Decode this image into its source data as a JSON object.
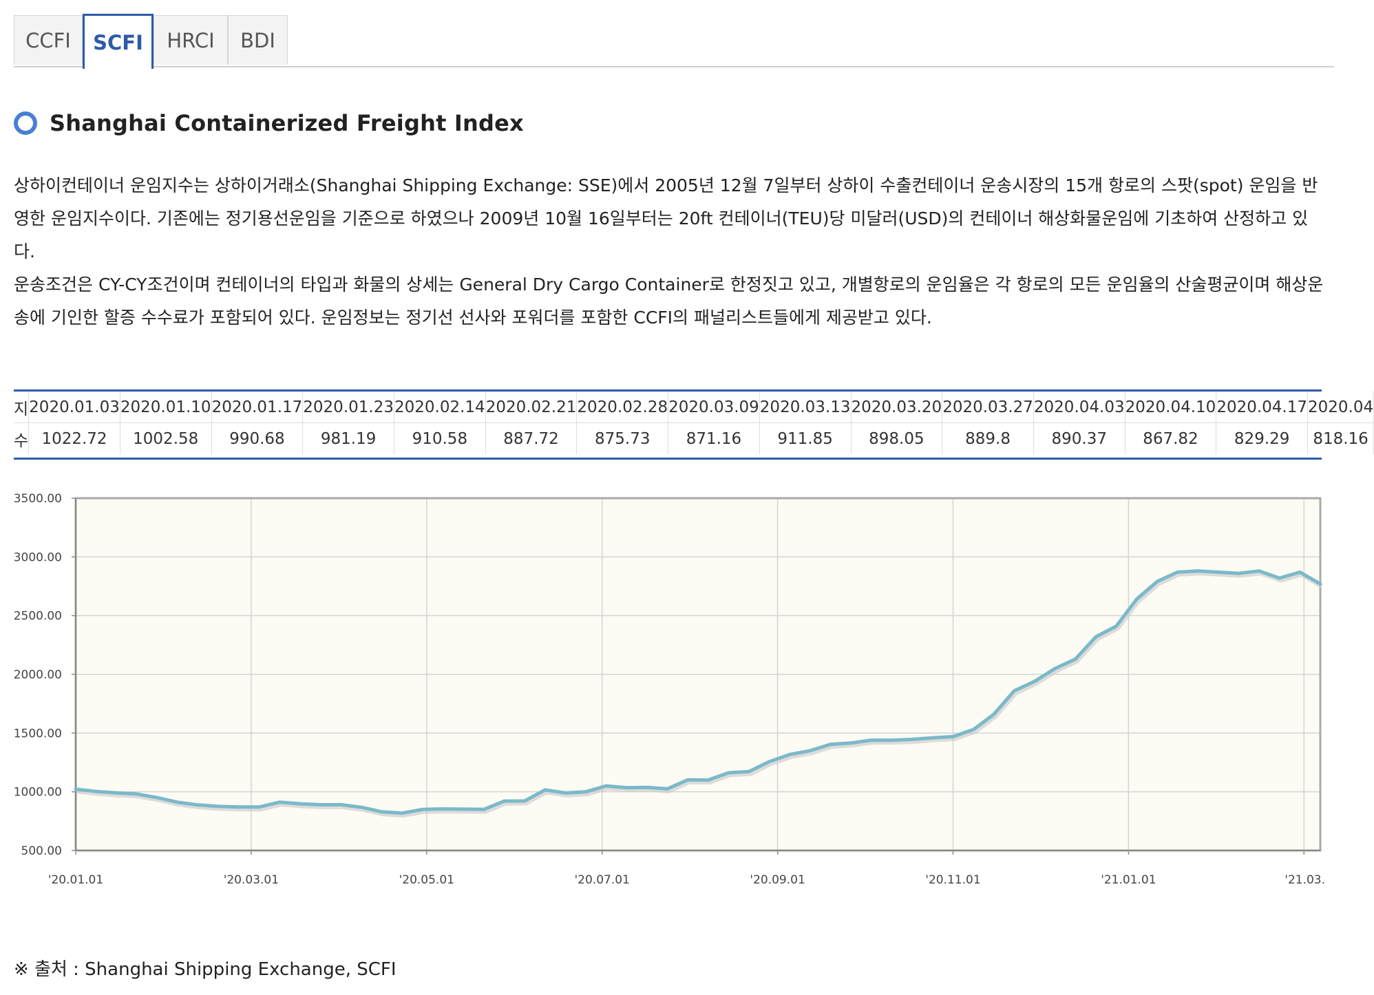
{
  "tabs": [
    {
      "label": "CCFI",
      "active": false
    },
    {
      "label": "SCFI",
      "active": true
    },
    {
      "label": "HRCI",
      "active": false
    },
    {
      "label": "BDI",
      "active": false
    }
  ],
  "section": {
    "title": "Shanghai Containerized Freight Index"
  },
  "description": {
    "p1": "  상하이컨테이너 운임지수는 상하이거래소(Shanghai Shipping Exchange: SSE)에서 2005년 12월 7일부터 상하이 수출컨테이너 운송시장의 15개 항로의 스팟(spot) 운임을 반영한 운임지수이다. 기존에는 정기용선운임을 기준으로 하였으나 2009년 10월 16일부터는 20ft 컨테이너(TEU)당 미달러(USD)의 컨테이너 해상화물운임에 기초하여 산정하고 있다.",
    "p2": "  운송조건은 CY-CY조건이며 컨테이너의 타입과 화물의 상세는 General Dry Cargo Container로 한정짓고 있고, 개별항로의 운임율은 각 항로의 모든 운임율의 산술평균이며 해상운송에 기인한 할증 수수료가 포함되어 있다. 운임정보는 정기선 선사와 포워더를 포함한 CCFI의 패널리스트들에게 제공받고 있다."
  },
  "table": {
    "header_top": "지",
    "header_bottom": "수",
    "dates": [
      "2020.01.03",
      "2020.01.10",
      "2020.01.17",
      "2020.01.23",
      "2020.02.14",
      "2020.02.21",
      "2020.02.28",
      "2020.03.09",
      "2020.03.13",
      "2020.03.20",
      "2020.03.27",
      "2020.04.03",
      "2020.04.10",
      "2020.04.17",
      "2020.04"
    ],
    "values": [
      "1022.72",
      "1002.58",
      "990.68",
      "981.19",
      "910.58",
      "887.72",
      "875.73",
      "871.16",
      "911.85",
      "898.05",
      "889.8",
      "890.37",
      "867.82",
      "829.29",
      "818.16"
    ]
  },
  "chart_data": {
    "type": "line",
    "title": "",
    "xlabel": "",
    "ylabel": "",
    "ylim": [
      500,
      3500
    ],
    "yticks": [
      "3500.00",
      "3000.00",
      "2500.00",
      "2000.00",
      "1500.00",
      "1000.00",
      "500.00"
    ],
    "xticks": [
      "'20.01.01",
      "'20.03.01",
      "'20.05.01",
      "'20.07.01",
      "'20.09.01",
      "'20.11.01",
      "'21.01.01",
      "'21.03."
    ],
    "grid": true,
    "line_color": "#7bb9c8",
    "plot_background": "#fcfbf4",
    "series": [
      {
        "name": "",
        "values": [
          1022.72,
          1002.58,
          990.68,
          981.19,
          950,
          910.58,
          887.72,
          875.73,
          871.16,
          871,
          911.85,
          898.05,
          889.8,
          890.37,
          867.82,
          829.29,
          818.16,
          850,
          854,
          852,
          850,
          920,
          922,
          1016,
          990,
          1000,
          1050,
          1035,
          1038,
          1025,
          1102,
          1100,
          1162,
          1172,
          1257,
          1318,
          1350,
          1404,
          1415,
          1440,
          1439,
          1446,
          1460,
          1470,
          1530,
          1660,
          1860,
          1940,
          2050,
          2130,
          2320,
          2410,
          2640,
          2790,
          2870,
          2880,
          2870,
          2860,
          2880,
          2820,
          2870,
          2770
        ]
      }
    ],
    "x_span": {
      "first_tick_index": 0,
      "tick_step": 8.6
    }
  },
  "source": {
    "text": "※ 출처 : Shanghai Shipping Exchange, SCFI"
  }
}
